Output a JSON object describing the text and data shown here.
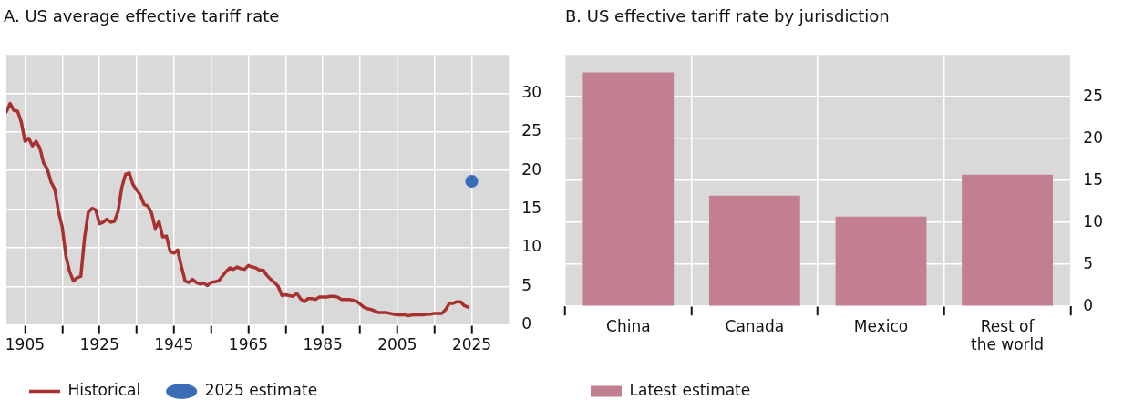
{
  "chart_data": [
    {
      "type": "line",
      "title": "A. US average effective tariff rate",
      "xlim": [
        1900,
        2035
      ],
      "ylim": [
        0,
        35
      ],
      "xticks": [
        1905,
        {
          "value": 1915,
          "label": null
        },
        1925,
        {
          "value": 1935,
          "label": null
        },
        1945,
        {
          "value": 1955,
          "label": null
        },
        1965,
        {
          "value": 1975,
          "label": null
        },
        1985,
        {
          "value": 1995,
          "label": null
        },
        2005,
        {
          "value": 2015,
          "label": null
        },
        2025
      ],
      "yticks": [
        0,
        5,
        10,
        15,
        20,
        25,
        30
      ],
      "grid": true,
      "legend": "bottom left",
      "series": [
        {
          "name": "Historical",
          "color": "#a8312f",
          "x": [
            1900,
            1901,
            1902,
            1903,
            1904,
            1905,
            1906,
            1907,
            1908,
            1909,
            1910,
            1911,
            1912,
            1913,
            1914,
            1915,
            1916,
            1917,
            1918,
            1919,
            1920,
            1921,
            1922,
            1923,
            1924,
            1925,
            1926,
            1927,
            1928,
            1929,
            1930,
            1931,
            1932,
            1933,
            1934,
            1935,
            1936,
            1937,
            1938,
            1939,
            1940,
            1941,
            1942,
            1943,
            1944,
            1945,
            1946,
            1947,
            1948,
            1949,
            1950,
            1951,
            1952,
            1953,
            1954,
            1955,
            1956,
            1957,
            1958,
            1959,
            1960,
            1961,
            1962,
            1963,
            1964,
            1965,
            1966,
            1967,
            1968,
            1969,
            1970,
            1971,
            1972,
            1973,
            1974,
            1975,
            1976,
            1977,
            1978,
            1979,
            1980,
            1981,
            1982,
            1983,
            1984,
            1985,
            1986,
            1987,
            1988,
            1989,
            1990,
            1991,
            1992,
            1993,
            1994,
            1995,
            1996,
            1997,
            1998,
            1999,
            2000,
            2001,
            2002,
            2003,
            2004,
            2005,
            2006,
            2007,
            2008,
            2009,
            2010,
            2011,
            2012,
            2013,
            2014,
            2015,
            2016,
            2017,
            2018,
            2019,
            2020,
            2021,
            2022,
            2023,
            2024
          ],
          "values": [
            27.6,
            28.7,
            27.8,
            27.7,
            26.3,
            23.8,
            24.2,
            23.2,
            23.8,
            22.9,
            21.0,
            20.2,
            18.5,
            17.6,
            14.7,
            12.7,
            8.9,
            6.9,
            5.7,
            6.1,
            6.3,
            11.3,
            14.6,
            15.1,
            14.9,
            13.1,
            13.3,
            13.7,
            13.3,
            13.4,
            14.7,
            17.8,
            19.5,
            19.7,
            18.2,
            17.5,
            16.8,
            15.6,
            15.4,
            14.5,
            12.5,
            13.4,
            11.4,
            11.5,
            9.5,
            9.3,
            9.7,
            7.6,
            5.7,
            5.5,
            5.9,
            5.5,
            5.3,
            5.4,
            5.1,
            5.5,
            5.6,
            5.7,
            6.3,
            6.9,
            7.4,
            7.2,
            7.5,
            7.3,
            7.2,
            7.7,
            7.5,
            7.4,
            7.1,
            7.1,
            6.4,
            5.9,
            5.5,
            5.0,
            3.8,
            3.9,
            3.8,
            3.7,
            4.1,
            3.4,
            3.0,
            3.4,
            3.4,
            3.3,
            3.6,
            3.6,
            3.6,
            3.7,
            3.7,
            3.6,
            3.3,
            3.3,
            3.3,
            3.2,
            3.1,
            2.7,
            2.3,
            2.1,
            2.0,
            1.8,
            1.6,
            1.6,
            1.6,
            1.5,
            1.4,
            1.3,
            1.3,
            1.3,
            1.2,
            1.3,
            1.3,
            1.3,
            1.3,
            1.4,
            1.4,
            1.5,
            1.5,
            1.5,
            2.0,
            2.8,
            2.8,
            3.0,
            3.0,
            2.5,
            2.3
          ]
        },
        {
          "name": "2025 estimate",
          "type": "scatter",
          "marker": "circle",
          "color": "#3a6db5",
          "x": [
            2025
          ],
          "values": [
            18.6
          ]
        }
      ]
    },
    {
      "type": "bar",
      "title": "B. US effective tariff rate by jurisdiction",
      "categories": [
        "China",
        "Canada",
        "Mexico",
        "Rest of the world"
      ],
      "ylim": [
        0,
        30
      ],
      "yticks": [
        0,
        5,
        10,
        15,
        20,
        25
      ],
      "grid": true,
      "legend": "bottom left",
      "series": [
        {
          "name": "Latest estimate",
          "color": "#c27f8f",
          "values": [
            27.9,
            13.2,
            10.7,
            15.7
          ]
        }
      ]
    }
  ]
}
